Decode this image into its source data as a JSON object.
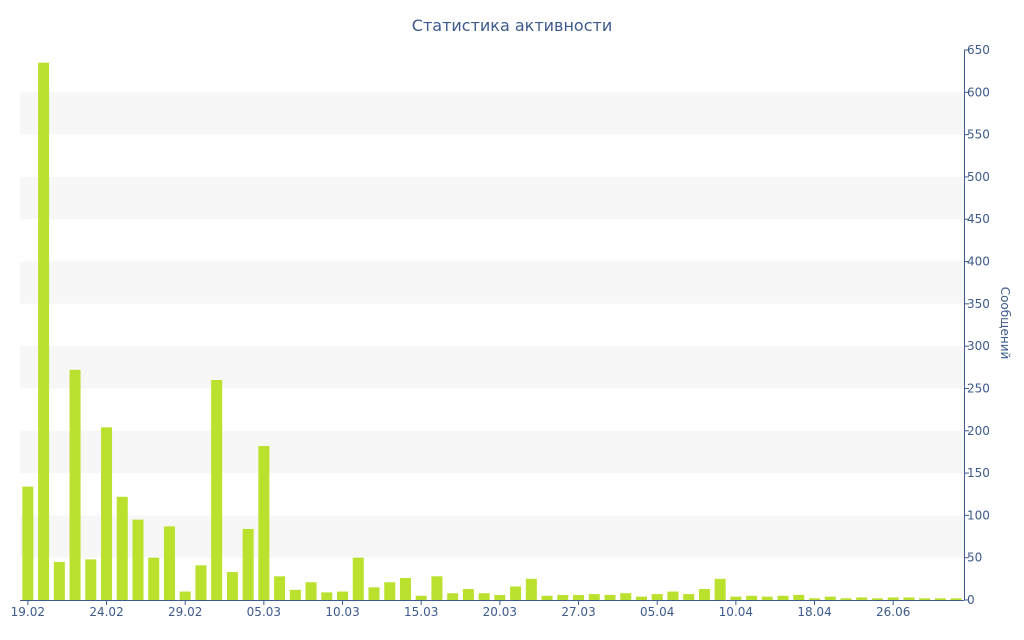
{
  "chart_data": {
    "type": "bar",
    "title": "Статистика активности",
    "xlabel": "",
    "ylabel": "Сообщений",
    "ylim": [
      0,
      650
    ],
    "ytick_step": 50,
    "y_axis_side": "right",
    "grid": "alternating-bands",
    "colors": {
      "bar": "#b9e12e",
      "text": "#3d5a8c",
      "axis": "#3d5a8c",
      "band": "#f7f7f7"
    },
    "values": [
      134,
      635,
      45,
      272,
      48,
      204,
      122,
      95,
      50,
      87,
      10,
      41,
      260,
      33,
      84,
      182,
      28,
      12,
      21,
      9,
      10,
      50,
      15,
      21,
      26,
      5,
      28,
      8,
      13,
      8,
      6,
      16,
      25,
      5,
      6,
      6,
      7,
      6,
      8,
      4,
      7,
      10,
      7,
      13,
      25,
      4,
      5,
      4,
      5,
      6,
      2,
      4,
      2,
      3,
      2,
      3,
      3,
      2,
      2,
      2
    ],
    "x_tick_labels": [
      {
        "label": "19.02",
        "at": 0
      },
      {
        "label": "24.02",
        "at": 5
      },
      {
        "label": "29.02",
        "at": 10
      },
      {
        "label": "05.03",
        "at": 15
      },
      {
        "label": "10.03",
        "at": 20
      },
      {
        "label": "15.03",
        "at": 25
      },
      {
        "label": "20.03",
        "at": 30
      },
      {
        "label": "27.03",
        "at": 35
      },
      {
        "label": "05.04",
        "at": 40
      },
      {
        "label": "10.04",
        "at": 45
      },
      {
        "label": "18.04",
        "at": 50
      },
      {
        "label": "26.06",
        "at": 55
      }
    ]
  }
}
